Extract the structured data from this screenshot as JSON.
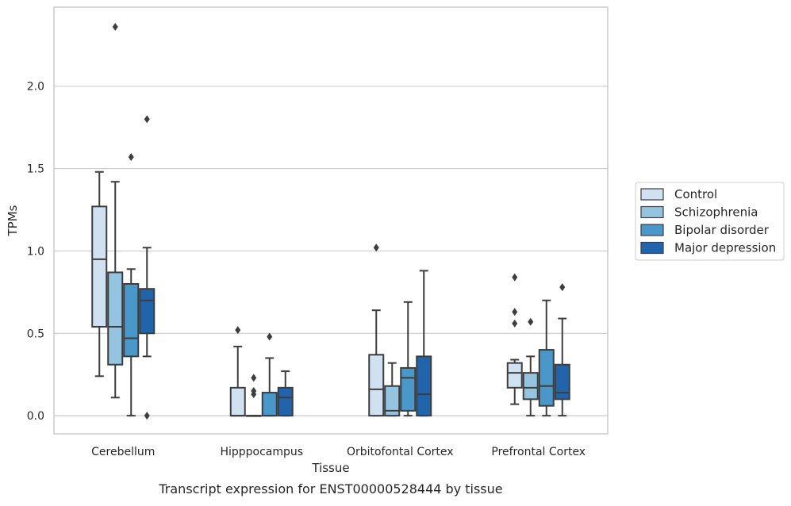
{
  "chart_data": {
    "type": "box",
    "title": "",
    "caption": "Transcript expression for ENST00000528444 by tissue",
    "xlabel": "Tissue",
    "ylabel": "TPMs",
    "ylim": [
      -0.11,
      2.48
    ],
    "yticks": [
      "0.0",
      "0.5",
      "1.0",
      "1.5",
      "2.0"
    ],
    "ytick_values": [
      0.0,
      0.5,
      1.0,
      1.5,
      2.0
    ],
    "grid": "horizontal",
    "legend_position": "right",
    "categories": [
      "Cerebellum",
      "Hipppocampus",
      "Orbitofontal Cortex",
      "Prefrontal Cortex"
    ],
    "series": [
      {
        "name": "Control",
        "color": "#d0e1f2",
        "boxes": [
          {
            "whislo": 0.24,
            "q1": 0.54,
            "med": 0.95,
            "q3": 1.27,
            "whishi": 1.48,
            "fliers": []
          },
          {
            "whislo": 0.0,
            "q1": 0.0,
            "med": 0.0,
            "q3": 0.17,
            "whishi": 0.42,
            "fliers": [
              0.52
            ]
          },
          {
            "whislo": 0.0,
            "q1": 0.0,
            "med": 0.16,
            "q3": 0.37,
            "whishi": 0.64,
            "fliers": [
              1.02
            ]
          },
          {
            "whislo": 0.07,
            "q1": 0.17,
            "med": 0.26,
            "q3": 0.32,
            "whishi": 0.34,
            "fliers": [
              0.56,
              0.63,
              0.84
            ]
          }
        ]
      },
      {
        "name": "Schizophrenia",
        "color": "#94c4df",
        "boxes": [
          {
            "whislo": 0.11,
            "q1": 0.31,
            "med": 0.54,
            "q3": 0.87,
            "whishi": 1.42,
            "fliers": [
              2.36
            ]
          },
          {
            "whislo": 0.0,
            "q1": 0.0,
            "med": 0.0,
            "q3": 0.0,
            "whishi": 0.0,
            "fliers": [
              0.13,
              0.15,
              0.23
            ]
          },
          {
            "whislo": 0.0,
            "q1": 0.0,
            "med": 0.03,
            "q3": 0.18,
            "whishi": 0.32,
            "fliers": []
          },
          {
            "whislo": 0.0,
            "q1": 0.1,
            "med": 0.17,
            "q3": 0.26,
            "whishi": 0.36,
            "fliers": [
              0.57
            ]
          }
        ]
      },
      {
        "name": "Bipolar disorder",
        "color": "#4a98c9",
        "boxes": [
          {
            "whislo": 0.0,
            "q1": 0.36,
            "med": 0.47,
            "q3": 0.8,
            "whishi": 0.89,
            "fliers": [
              1.57
            ]
          },
          {
            "whislo": 0.0,
            "q1": 0.0,
            "med": 0.0,
            "q3": 0.14,
            "whishi": 0.35,
            "fliers": [
              0.48
            ]
          },
          {
            "whislo": 0.0,
            "q1": 0.03,
            "med": 0.23,
            "q3": 0.29,
            "whishi": 0.69,
            "fliers": []
          },
          {
            "whislo": 0.0,
            "q1": 0.06,
            "med": 0.18,
            "q3": 0.4,
            "whishi": 0.7,
            "fliers": []
          }
        ]
      },
      {
        "name": "Major depression",
        "color": "#2164ab",
        "boxes": [
          {
            "whislo": 0.36,
            "q1": 0.5,
            "med": 0.7,
            "q3": 0.77,
            "whishi": 1.02,
            "fliers": [
              0.0,
              1.8
            ]
          },
          {
            "whislo": 0.0,
            "q1": 0.0,
            "med": 0.11,
            "q3": 0.17,
            "whishi": 0.27,
            "fliers": []
          },
          {
            "whislo": 0.0,
            "q1": 0.0,
            "med": 0.13,
            "q3": 0.36,
            "whishi": 0.88,
            "fliers": []
          },
          {
            "whislo": 0.0,
            "q1": 0.1,
            "med": 0.14,
            "q3": 0.31,
            "whishi": 0.59,
            "fliers": [
              0.78
            ]
          }
        ]
      }
    ]
  }
}
